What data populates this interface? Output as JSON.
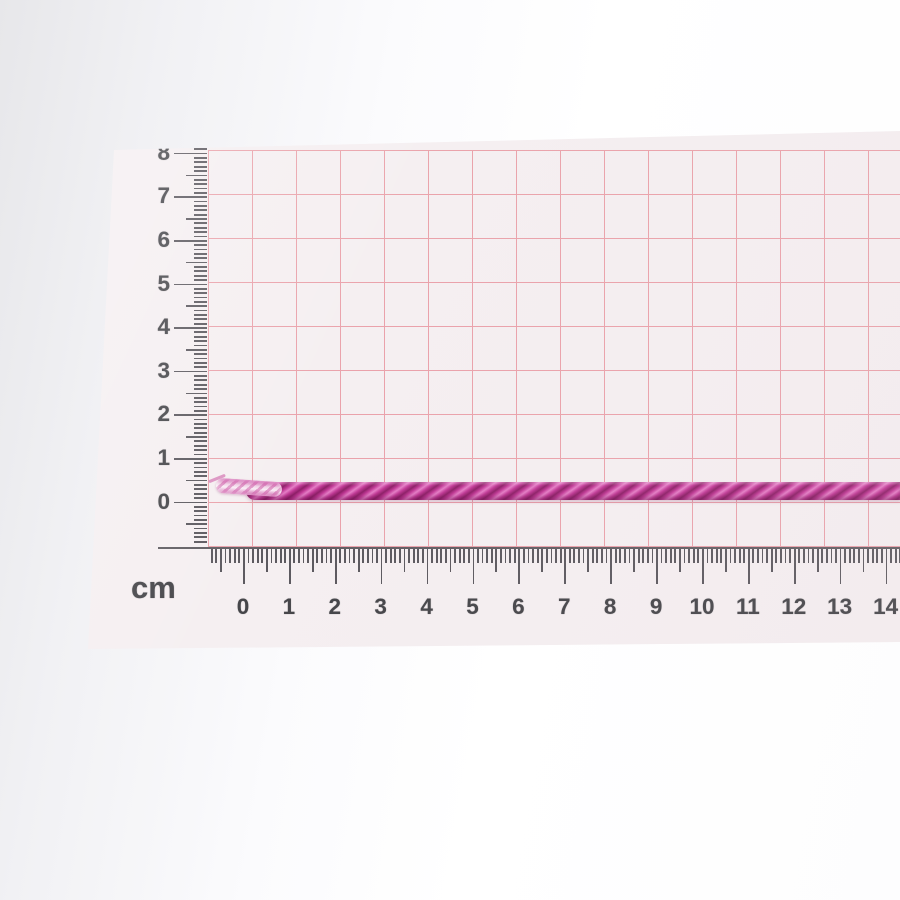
{
  "subject": {
    "name": "magenta-twisted-cord",
    "placement": "lying horizontally along the 0 line of the graph paper"
  },
  "rulers": {
    "unit_label": "cm",
    "horizontal": {
      "labels": [
        "0",
        "1",
        "2",
        "3",
        "4",
        "5",
        "6",
        "7",
        "8",
        "9",
        "10",
        "11",
        "12",
        "13",
        "14"
      ],
      "minor_ticks_per_major": 10
    },
    "vertical": {
      "labels": [
        "0",
        "1",
        "2",
        "3",
        "4",
        "5",
        "6",
        "7",
        "8"
      ],
      "minor_ticks_per_major": 10
    }
  },
  "grid": {
    "cell_size_cm": 1
  },
  "colors": {
    "paper": "#f5eff1",
    "grid_line": "#e8909a",
    "ruler_ink": "#47444a",
    "label_ink": "#454549",
    "cord_base": "#c23a97",
    "cord_highlight": "#e57ec6",
    "cord_shadow": "#8e2068",
    "cord_tip": "#f0d3e6"
  }
}
